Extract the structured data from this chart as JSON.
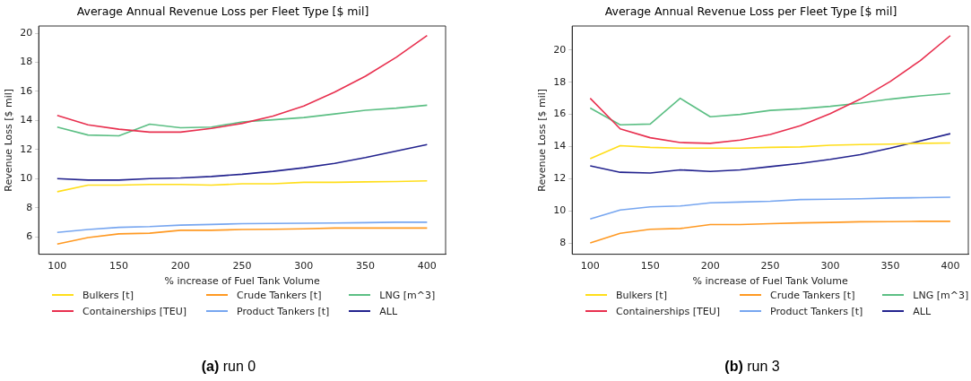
{
  "chart_data": [
    {
      "type": "line",
      "title": "Average Annual Revenue Loss per Fleet Type [$ mil]",
      "xlabel": "% increase of Fuel Tank Volume",
      "ylabel": "Revenue Loss [$ mil]",
      "x": [
        100,
        125,
        150,
        175,
        200,
        225,
        250,
        275,
        300,
        325,
        350,
        375,
        400
      ],
      "series": [
        {
          "name": "Bulkers [t]",
          "color": "#ffde1a",
          "values": [
            9.1,
            9.55,
            9.55,
            9.6,
            9.6,
            9.55,
            9.65,
            9.65,
            9.75,
            9.75,
            9.78,
            9.8,
            9.85
          ]
        },
        {
          "name": "Containerships [TEU]",
          "color": "#e8304f",
          "values": [
            14.35,
            13.7,
            13.4,
            13.2,
            13.2,
            13.45,
            13.8,
            14.3,
            15.0,
            15.95,
            17.05,
            18.35,
            19.85
          ]
        },
        {
          "name": "Crude Tankers [t]",
          "color": "#ff9922",
          "values": [
            5.5,
            5.95,
            6.2,
            6.25,
            6.45,
            6.45,
            6.5,
            6.52,
            6.55,
            6.6,
            6.6,
            6.6,
            6.6
          ]
        },
        {
          "name": "Product Tankers [t]",
          "color": "#77a6f0",
          "values": [
            6.3,
            6.5,
            6.65,
            6.7,
            6.8,
            6.85,
            6.9,
            6.92,
            6.93,
            6.95,
            6.97,
            7.0,
            7.0
          ]
        },
        {
          "name": "LNG [m^3]",
          "color": "#5cbf84",
          "values": [
            13.55,
            13.0,
            12.95,
            13.75,
            13.5,
            13.55,
            13.9,
            14.05,
            14.2,
            14.45,
            14.7,
            14.85,
            15.05
          ]
        },
        {
          "name": "ALL",
          "color": "#23238e",
          "values": [
            10.0,
            9.9,
            9.9,
            10.0,
            10.05,
            10.15,
            10.3,
            10.5,
            10.75,
            11.05,
            11.45,
            11.9,
            12.35
          ]
        }
      ],
      "xlim": [
        85,
        415
      ],
      "xticks": [
        100,
        150,
        200,
        250,
        300,
        350,
        400
      ],
      "ylim": [
        4.8,
        20.5
      ],
      "yticks": [
        6,
        8,
        10,
        12,
        14,
        16,
        18,
        20
      ],
      "grid": false,
      "legend": "bottom",
      "marker": "none",
      "line_style": "solid",
      "annotations": [
        "(a) run 0"
      ]
    },
    {
      "type": "line",
      "title": "Average Annual Revenue Loss per Fleet Type [$ mil]",
      "xlabel": "% increase of Fuel Tank Volume",
      "ylabel": "Revenue Loss [$ mil]",
      "x": [
        100,
        125,
        150,
        175,
        200,
        225,
        250,
        275,
        300,
        325,
        350,
        375,
        400
      ],
      "series": [
        {
          "name": "Bulkers [t]",
          "color": "#ffde1a",
          "values": [
            13.25,
            14.05,
            13.95,
            13.9,
            13.9,
            13.9,
            13.95,
            13.98,
            14.08,
            14.12,
            14.15,
            14.2,
            14.22
          ]
        },
        {
          "name": "Containerships [TEU]",
          "color": "#e8304f",
          "values": [
            17.0,
            15.1,
            14.55,
            14.25,
            14.2,
            14.4,
            14.75,
            15.3,
            16.05,
            16.95,
            18.05,
            19.35,
            20.9
          ]
        },
        {
          "name": "Crude Tankers [t]",
          "color": "#ff9922",
          "values": [
            8.0,
            8.6,
            8.85,
            8.9,
            9.15,
            9.15,
            9.2,
            9.25,
            9.28,
            9.32,
            9.33,
            9.35,
            9.35
          ]
        },
        {
          "name": "Product Tankers [t]",
          "color": "#77a6f0",
          "values": [
            9.5,
            10.05,
            10.25,
            10.3,
            10.5,
            10.55,
            10.6,
            10.7,
            10.72,
            10.75,
            10.8,
            10.82,
            10.85
          ]
        },
        {
          "name": "LNG [m^3]",
          "color": "#5cbf84",
          "values": [
            16.4,
            15.35,
            15.4,
            17.0,
            15.85,
            16.0,
            16.25,
            16.35,
            16.5,
            16.7,
            16.95,
            17.15,
            17.3
          ]
        },
        {
          "name": "ALL",
          "color": "#23238e",
          "values": [
            12.8,
            12.4,
            12.35,
            12.55,
            12.45,
            12.55,
            12.75,
            12.95,
            13.2,
            13.5,
            13.9,
            14.35,
            14.8
          ]
        }
      ],
      "xlim": [
        85,
        415
      ],
      "xticks": [
        100,
        150,
        200,
        250,
        300,
        350,
        400
      ],
      "ylim": [
        7.3,
        21.5
      ],
      "yticks": [
        8,
        10,
        12,
        14,
        16,
        18,
        20
      ],
      "grid": false,
      "legend": "bottom",
      "marker": "none",
      "line_style": "solid",
      "annotations": [
        "(b) run 3"
      ]
    }
  ]
}
